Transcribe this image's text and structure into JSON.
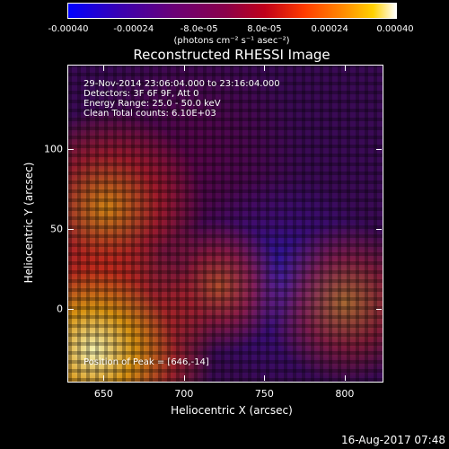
{
  "colorbar": {
    "ticks": [
      "-0.00040",
      "-0.00024",
      "-8.0e-05",
      "8.0e-05",
      "0.00024",
      "0.00040"
    ],
    "units": "(photons cm⁻² s⁻¹ asec⁻²)"
  },
  "chart_data": {
    "type": "heatmap",
    "title": "Reconstructed RHESSI Image",
    "xlabel": "Heliocentric X (arcsec)",
    "ylabel": "Heliocentric Y (arcsec)",
    "x_ticks": [
      650,
      700,
      750,
      800
    ],
    "y_ticks": [
      0,
      50,
      100
    ],
    "xlim": [
      628,
      823
    ],
    "ylim": [
      -44,
      152
    ],
    "colorbar_range": [
      -0.0004,
      0.0004
    ],
    "colormap": "blue-purple-red-orange-yellow-white",
    "peak": [
      646,
      -14
    ]
  },
  "info": {
    "time_range": "29-Nov-2014 23:06:04.000 to 23:16:04.000",
    "detectors": "Detectors: 3F 6F 9F, Att 0",
    "energy": "Energy Range: 25.0 - 50.0 keV",
    "clean": "Clean    Total counts: 6.10E+03",
    "peak": "Position of Peak = [646,-14]"
  },
  "footer": {
    "timestamp": "16-Aug-2017 07:48"
  }
}
